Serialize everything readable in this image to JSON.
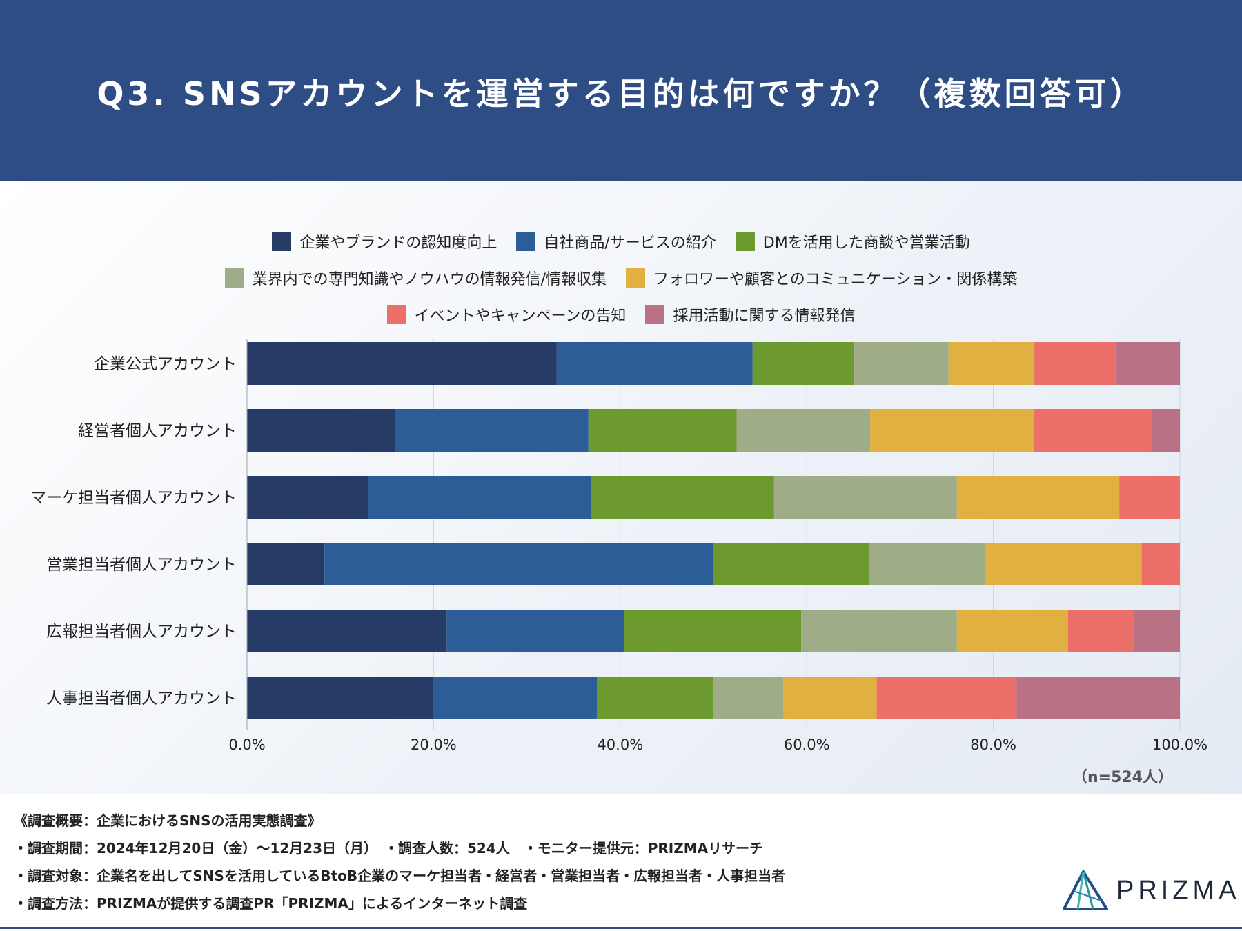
{
  "title": "Q3. SNSアカウントを運営する目的は何ですか？（複数回答可）",
  "legend_rows": [
    [
      {
        "label": "企業やブランドの認知度向上",
        "color": "#263b66"
      },
      {
        "label": "自社商品/サービスの紹介",
        "color": "#2d5d96"
      },
      {
        "label": "DMを活用した商談や営業活動",
        "color": "#6d9a2e"
      }
    ],
    [
      {
        "label": "業界内での専門知識やノウハウの情報発信/情報収集",
        "color": "#9eac88"
      },
      {
        "label": "フォロワーや顧客とのコミュニケーション・関係構築",
        "color": "#e0b040"
      }
    ],
    [
      {
        "label": "イベントやキャンペーンの告知",
        "color": "#ec6f6a"
      },
      {
        "label": "採用活動に関する情報発信",
        "color": "#b97285"
      }
    ]
  ],
  "chart_data": {
    "type": "bar",
    "orientation": "horizontal",
    "stacked": true,
    "title": "Q3. SNSアカウントを運営する目的は何ですか？（複数回答可）",
    "categories": [
      "企業公式アカウント",
      "経営者個人アカウント",
      "マーケ担当者個人アカウント",
      "営業担当者個人アカウント",
      "広報担当者個人アカウント",
      "人事担当者個人アカウント"
    ],
    "series": [
      {
        "name": "企業やブランドの認知度向上",
        "color": "#263b66",
        "values": [
          33.2,
          15.9,
          13.0,
          8.3,
          21.4,
          20.0
        ]
      },
      {
        "name": "自社商品/サービスの紹介",
        "color": "#2d5d96",
        "values": [
          21.0,
          20.7,
          23.9,
          41.7,
          19.0,
          17.5
        ]
      },
      {
        "name": "DMを活用した商談や営業活動",
        "color": "#6d9a2e",
        "values": [
          10.9,
          15.9,
          19.6,
          16.7,
          19.0,
          12.5
        ]
      },
      {
        "name": "業界内での専門知識やノウハウの情報発信/情報収集",
        "color": "#9eac88",
        "values": [
          10.1,
          14.3,
          19.6,
          12.5,
          16.7,
          7.5
        ]
      },
      {
        "name": "フォロワーや顧客とのコミュニケーション・関係構築",
        "color": "#e0b040",
        "values": [
          9.2,
          17.5,
          17.4,
          16.7,
          11.9,
          10.0
        ]
      },
      {
        "name": "イベントやキャンペーンの告知",
        "color": "#ec6f6a",
        "values": [
          8.8,
          12.6,
          6.5,
          4.1,
          7.1,
          15.0
        ]
      },
      {
        "name": "採用活動に関する情報発信",
        "color": "#b97285",
        "values": [
          6.8,
          3.1,
          0.0,
          0.0,
          4.9,
          17.5
        ]
      }
    ],
    "xlim": [
      0,
      100
    ],
    "xticks": [
      "0.0%",
      "20.0%",
      "40.0%",
      "60.0%",
      "80.0%",
      "100.0%"
    ],
    "grid": true,
    "xlabel": "",
    "ylabel": "",
    "note": "（n=524人）"
  },
  "footer": {
    "line1": "《調査概要：企業におけるSNSの活用実態調査》",
    "line2": "・調査期間：2024年12月20日（金）〜12月23日（月）　・調査人数：524人　・モニター提供元：PRIZMAリサーチ",
    "line3": "・調査対象：企業名を出してSNSを活用しているBtoB企業のマーケ担当者・経営者・営業担当者・広報担当者・人事担当者",
    "line4": "・調査方法：PRIZMAが提供する調査PR「PRIZMA」によるインターネット調査"
  },
  "logo": {
    "text": "PRIZMA",
    "icon": "prism-triangle-icon"
  }
}
